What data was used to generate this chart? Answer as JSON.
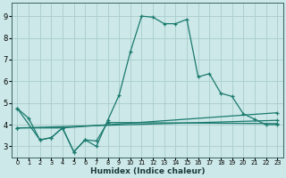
{
  "xlabel": "Humidex (Indice chaleur)",
  "ylabel": "",
  "bg_color": "#cce8e8",
  "grid_color": "#aacccc",
  "line_color": "#1a7a6e",
  "xlim": [
    -0.5,
    23.5
  ],
  "ylim": [
    2.5,
    9.6
  ],
  "xticks": [
    0,
    1,
    2,
    3,
    4,
    5,
    6,
    7,
    8,
    9,
    10,
    11,
    12,
    13,
    14,
    15,
    16,
    17,
    18,
    19,
    20,
    21,
    22,
    23
  ],
  "yticks": [
    3,
    4,
    5,
    6,
    7,
    8,
    9
  ],
  "series1": [
    [
      0,
      4.75
    ],
    [
      1,
      4.3
    ],
    [
      2,
      3.3
    ],
    [
      3,
      3.4
    ],
    [
      4,
      3.85
    ],
    [
      5,
      2.75
    ],
    [
      6,
      3.3
    ],
    [
      7,
      3.0
    ],
    [
      8,
      4.2
    ],
    [
      9,
      5.35
    ],
    [
      10,
      7.35
    ],
    [
      11,
      9.0
    ],
    [
      12,
      8.95
    ],
    [
      13,
      8.65
    ],
    [
      14,
      8.65
    ],
    [
      15,
      8.85
    ],
    [
      16,
      6.2
    ],
    [
      17,
      6.35
    ],
    [
      18,
      5.45
    ],
    [
      19,
      5.3
    ],
    [
      20,
      4.5
    ],
    [
      21,
      4.25
    ],
    [
      22,
      4.0
    ],
    [
      23,
      4.0
    ]
  ],
  "series2": [
    [
      0,
      4.75
    ],
    [
      2,
      3.3
    ],
    [
      3,
      3.4
    ],
    [
      4,
      3.85
    ],
    [
      5,
      2.75
    ],
    [
      6,
      3.3
    ],
    [
      7,
      3.25
    ],
    [
      8,
      4.1
    ],
    [
      23,
      4.05
    ]
  ],
  "series3": [
    [
      0,
      3.85
    ],
    [
      4,
      3.85
    ],
    [
      23,
      4.55
    ]
  ],
  "series4": [
    [
      0,
      3.85
    ],
    [
      23,
      4.2
    ]
  ]
}
